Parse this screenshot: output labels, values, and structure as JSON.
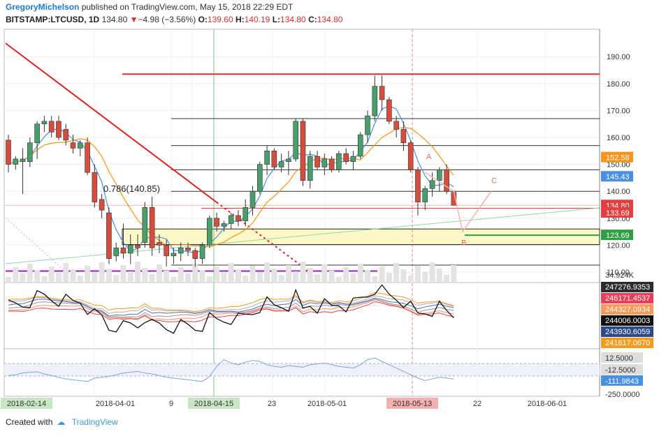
{
  "header": {
    "author": "GregoryMichelson",
    "published": "published on TradingView.com, May 15, 2018 22:29 EDT",
    "symbol": "BITSTAMP:LTCUSD, 1D",
    "last": "134.80",
    "arrow": "▼",
    "change": "−4.98 (−3.56%)",
    "o_label": "O:",
    "o": "139.60",
    "h_label": "H:",
    "h": "140.19",
    "l_label": "L:",
    "l": "134.80",
    "c_label": "C:",
    "c": "134.80"
  },
  "footer": {
    "created_with": "Created with",
    "brand": "TradingView"
  },
  "colors": {
    "up": "#4a9e6b",
    "down": "#d44d3f",
    "fib_zone": "#fdf8c7",
    "accent_blue": "#2f8ae0"
  },
  "chart_data": {
    "type": "candlestick",
    "title": "BITSTAMP:LTCUSD, 1D",
    "price_axis": {
      "ylim": [
        108,
        194
      ],
      "ticks": [
        110,
        120,
        130,
        140,
        150,
        160,
        170,
        180,
        190
      ],
      "tick_labels": [
        "110.00",
        "120.00",
        "130.00",
        "140.00",
        "150.00",
        "160.00",
        "170.00",
        "180.00",
        "190.00"
      ]
    },
    "x_axis": {
      "labels": [
        "2018-02-14",
        "2018-04-01",
        "9",
        "2018-04-15",
        "23",
        "2018-05-01",
        "2018-05-13",
        "22",
        "2018-06-01"
      ],
      "highlighted": [
        "2018-02-14",
        "2018-04-15",
        "2018-05-13"
      ]
    },
    "candles": [
      {
        "o": 159,
        "h": 161,
        "l": 147,
        "c": 150
      },
      {
        "o": 150,
        "h": 153,
        "l": 148,
        "c": 152
      },
      {
        "o": 151,
        "h": 156,
        "l": 139,
        "c": 152
      },
      {
        "o": 151,
        "h": 160,
        "l": 149,
        "c": 158
      },
      {
        "o": 158,
        "h": 166,
        "l": 152,
        "c": 165
      },
      {
        "o": 165,
        "h": 168,
        "l": 162,
        "c": 166
      },
      {
        "o": 166,
        "h": 168,
        "l": 160,
        "c": 162
      },
      {
        "o": 166,
        "h": 168,
        "l": 159,
        "c": 160
      },
      {
        "o": 163,
        "h": 165,
        "l": 157,
        "c": 159
      },
      {
        "o": 158,
        "h": 161,
        "l": 154,
        "c": 156
      },
      {
        "o": 156,
        "h": 159,
        "l": 153,
        "c": 158
      },
      {
        "o": 158,
        "h": 160,
        "l": 146,
        "c": 147
      },
      {
        "o": 147,
        "h": 150,
        "l": 134,
        "c": 136
      },
      {
        "o": 137,
        "h": 139,
        "l": 130,
        "c": 133
      },
      {
        "o": 132,
        "h": 134,
        "l": 113,
        "c": 115
      },
      {
        "o": 116,
        "h": 121,
        "l": 114,
        "c": 119
      },
      {
        "o": 119,
        "h": 128,
        "l": 115,
        "c": 117
      },
      {
        "o": 117,
        "h": 124,
        "l": 113,
        "c": 120
      },
      {
        "o": 120,
        "h": 124,
        "l": 116,
        "c": 119
      },
      {
        "o": 121,
        "h": 136,
        "l": 119,
        "c": 134
      },
      {
        "o": 134,
        "h": 138,
        "l": 116,
        "c": 119
      },
      {
        "o": 121,
        "h": 124,
        "l": 117,
        "c": 120
      },
      {
        "o": 120,
        "h": 122,
        "l": 112,
        "c": 116
      },
      {
        "o": 116,
        "h": 119,
        "l": 113,
        "c": 117
      },
      {
        "o": 117,
        "h": 121,
        "l": 114,
        "c": 119
      },
      {
        "o": 119,
        "h": 121,
        "l": 116,
        "c": 118
      },
      {
        "o": 118,
        "h": 119,
        "l": 112,
        "c": 115
      },
      {
        "o": 115,
        "h": 121,
        "l": 113,
        "c": 120
      },
      {
        "o": 120,
        "h": 131,
        "l": 119,
        "c": 130
      },
      {
        "o": 130,
        "h": 132,
        "l": 125,
        "c": 127
      },
      {
        "o": 127,
        "h": 129,
        "l": 125,
        "c": 128
      },
      {
        "o": 128,
        "h": 132,
        "l": 126,
        "c": 131
      },
      {
        "o": 131,
        "h": 133,
        "l": 127,
        "c": 129
      },
      {
        "o": 129,
        "h": 137,
        "l": 127,
        "c": 134
      },
      {
        "o": 134,
        "h": 142,
        "l": 131,
        "c": 140
      },
      {
        "o": 140,
        "h": 151,
        "l": 139,
        "c": 150
      },
      {
        "o": 150,
        "h": 157,
        "l": 146,
        "c": 155
      },
      {
        "o": 155,
        "h": 156,
        "l": 148,
        "c": 149
      },
      {
        "o": 149,
        "h": 154,
        "l": 147,
        "c": 151
      },
      {
        "o": 151,
        "h": 155,
        "l": 146,
        "c": 152
      },
      {
        "o": 152,
        "h": 167,
        "l": 151,
        "c": 166
      },
      {
        "o": 166,
        "h": 167,
        "l": 142,
        "c": 144
      },
      {
        "o": 144,
        "h": 155,
        "l": 141,
        "c": 153
      },
      {
        "o": 153,
        "h": 155,
        "l": 148,
        "c": 149
      },
      {
        "o": 149,
        "h": 154,
        "l": 146,
        "c": 152
      },
      {
        "o": 152,
        "h": 153,
        "l": 147,
        "c": 148
      },
      {
        "o": 148,
        "h": 155,
        "l": 147,
        "c": 154
      },
      {
        "o": 154,
        "h": 156,
        "l": 150,
        "c": 151
      },
      {
        "o": 151,
        "h": 155,
        "l": 148,
        "c": 153
      },
      {
        "o": 153,
        "h": 162,
        "l": 152,
        "c": 161
      },
      {
        "o": 161,
        "h": 170,
        "l": 158,
        "c": 168
      },
      {
        "o": 168,
        "h": 183,
        "l": 166,
        "c": 179
      },
      {
        "o": 179,
        "h": 183,
        "l": 170,
        "c": 174
      },
      {
        "o": 174,
        "h": 175,
        "l": 165,
        "c": 166
      },
      {
        "o": 166,
        "h": 168,
        "l": 160,
        "c": 163
      },
      {
        "o": 163,
        "h": 166,
        "l": 155,
        "c": 158
      },
      {
        "o": 158,
        "h": 159,
        "l": 147,
        "c": 148
      },
      {
        "o": 148,
        "h": 149,
        "l": 131,
        "c": 136
      },
      {
        "o": 136,
        "h": 142,
        "l": 133,
        "c": 141
      },
      {
        "o": 141,
        "h": 147,
        "l": 138,
        "c": 144
      },
      {
        "o": 144,
        "h": 149,
        "l": 140,
        "c": 148
      },
      {
        "o": 148,
        "h": 150,
        "l": 139,
        "c": 140
      },
      {
        "o": 139.6,
        "h": 140.19,
        "l": 134.8,
        "c": 134.8
      }
    ],
    "horizontal_levels": [
      {
        "price": 183.5,
        "color": "#e03030"
      },
      {
        "price": 167,
        "color": "#333333"
      },
      {
        "price": 157,
        "color": "#333333"
      },
      {
        "price": 148,
        "color": "#333333"
      },
      {
        "price": 140,
        "color": "#333333"
      },
      {
        "price": 123.69,
        "color": "#2ea043"
      },
      {
        "price": 120.2,
        "color": "#333333"
      },
      {
        "price": 112.6,
        "color": "#333333"
      },
      {
        "price": 110.4,
        "color": "#a020c0"
      }
    ],
    "fib_label": "0.786(140.85)",
    "pattern_labels": [
      "A",
      "B",
      "C"
    ],
    "price_badges": [
      {
        "text": "152.58",
        "color": "#f7941d"
      },
      {
        "text": "145.43",
        "color": "#4a90e2"
      },
      {
        "text": "134.80",
        "color": "#e04040"
      },
      {
        "text": "133.69",
        "color": "#e04040"
      },
      {
        "text": "123.69",
        "color": "#2ea043"
      }
    ],
    "volume_label": "34.924K",
    "oscillator_badges": [
      {
        "text": "247276.9353",
        "color": "#2b2b2b"
      },
      {
        "text": "246171.4537",
        "color": "#e83e5a"
      },
      {
        "text": "244327.0934",
        "color": "#f49a5a"
      },
      {
        "text": "244006.0003",
        "color": "#111111"
      },
      {
        "text": "243930.6059",
        "color": "#2c4a8a"
      },
      {
        "text": "241617.0670",
        "color": "#f39c1f"
      }
    ],
    "osc2_labels": [
      {
        "text": "12.5000",
        "color": "#555555"
      },
      {
        "text": "-12.5000",
        "color": "#555555"
      },
      {
        "text": "-111.9843",
        "color": "#4a90e2"
      }
    ],
    "osc2_axis_label": "-250.0000",
    "osc2_series": [
      -70,
      -60,
      -40,
      -30,
      -25,
      -50,
      -70,
      -90,
      -110,
      -120,
      -130,
      -140,
      -100,
      -90,
      -80,
      -60,
      -40,
      -30,
      -20,
      -40,
      -50,
      -70,
      -90,
      -100,
      -110,
      -120,
      -130,
      -140,
      -80,
      40,
      120,
      80,
      60,
      90,
      110,
      100,
      60,
      40,
      30,
      50,
      40,
      30,
      60,
      70,
      80,
      60,
      40,
      30,
      20,
      60,
      120,
      140,
      100,
      60,
      20,
      -20,
      -60,
      -100,
      -130,
      -110,
      -90,
      -100,
      -112
    ]
  }
}
